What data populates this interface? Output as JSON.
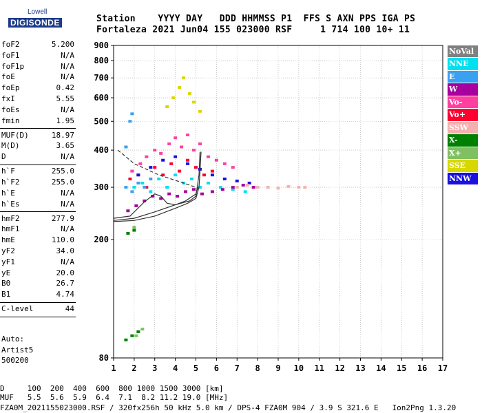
{
  "logo": {
    "brand_top": "Lowell",
    "brand_main": "DIGISONDE"
  },
  "header": {
    "line1": "Station    YYYY DAY   DDD HHMMSS P1  FFS S AXN PPS IGA PS",
    "line2": "Fortaleza 2021 Jun04 155 023000 RSF     1 714 100 10+ 11"
  },
  "params_groups": [
    [
      [
        "foF2",
        "5.200"
      ],
      [
        "foF1",
        "N/A"
      ],
      [
        "foF1p",
        "N/A"
      ],
      [
        "foE",
        "N/A"
      ],
      [
        "foEp",
        "0.42"
      ],
      [
        "fxI",
        "5.55"
      ],
      [
        "foEs",
        "N/A"
      ],
      [
        "fmin",
        "1.95"
      ]
    ],
    [
      [
        "MUF(D)",
        "18.97"
      ],
      [
        "M(D)",
        "3.65"
      ],
      [
        "D",
        "N/A"
      ]
    ],
    [
      [
        "h`F",
        "255.0"
      ],
      [
        "h`F2",
        "255.0"
      ],
      [
        "h`E",
        "N/A"
      ],
      [
        "h`Es",
        "N/A"
      ]
    ],
    [
      [
        "hmF2",
        "277.9"
      ],
      [
        "hmF1",
        "N/A"
      ],
      [
        "hmE",
        "110.0"
      ],
      [
        "yF2",
        "34.0"
      ],
      [
        "yF1",
        "N/A"
      ],
      [
        "yE",
        "20.0"
      ],
      [
        "B0",
        "26.7"
      ],
      [
        "B1",
        "4.74"
      ]
    ],
    [
      [
        "C-level",
        "44"
      ]
    ]
  ],
  "auto_lines": [
    "Auto:",
    "Artist5",
    "500200"
  ],
  "legend": [
    {
      "label": "NoVal",
      "color": "#808080"
    },
    {
      "label": "NNE",
      "color": "#00e0f0"
    },
    {
      "label": "E",
      "color": "#3aa0f0"
    },
    {
      "label": "W",
      "color": "#a8009e"
    },
    {
      "label": "Vo-",
      "color": "#ff40a0"
    },
    {
      "label": "Vo+",
      "color": "#ff0030"
    },
    {
      "label": "SSW",
      "color": "#f4b0b0"
    },
    {
      "label": "X-",
      "color": "#008000"
    },
    {
      "label": "X+",
      "color": "#80c060"
    },
    {
      "label": "SSE",
      "color": "#d8d800"
    },
    {
      "label": "NNW",
      "color": "#1a10e0"
    }
  ],
  "footer": {
    "line1": "D     100  200  400  600  800 1000 1500 3000 [km]",
    "line2": "MUF   5.5  5.6  5.9  6.4  7.1  8.2 11.2 19.0 [MHz]",
    "line3": "FZA0M_2021155023000.RSF / 320fx256h 50 kHz 5.0 km / DPS-4 FZA0M 904 / 3.9 S 321.6 E   Ion2Png 1.3.20"
  },
  "chart_data": {
    "type": "scatter",
    "title": "",
    "xlabel": "",
    "ylabel": "",
    "x_ticks": [
      1,
      2,
      3,
      4,
      5,
      6,
      7,
      8,
      9,
      10,
      11,
      12,
      13,
      14,
      15,
      16,
      17
    ],
    "y_ticks": [
      80,
      200,
      300,
      400,
      500,
      600,
      700,
      800,
      900
    ],
    "xlim": [
      1,
      17
    ],
    "ylim": [
      80,
      900
    ],
    "y_scale": "log",
    "grid": true,
    "legend_placement": "right",
    "series": [
      {
        "points": [
          [
            1.9,
            340
          ],
          [
            2.3,
            360
          ],
          [
            2.6,
            380
          ],
          [
            3.0,
            400
          ],
          [
            3.3,
            390
          ],
          [
            3.7,
            420
          ],
          [
            4.0,
            440
          ],
          [
            4.3,
            410
          ],
          [
            4.6,
            450
          ],
          [
            4.9,
            400
          ],
          [
            5.2,
            420
          ],
          [
            5.6,
            380
          ],
          [
            6.0,
            370
          ],
          [
            6.4,
            360
          ],
          [
            6.8,
            350
          ]
        ]
      },
      {
        "points": [
          [
            1.8,
            320
          ],
          [
            2.2,
            330
          ],
          [
            2.6,
            300
          ],
          [
            3.0,
            350
          ],
          [
            3.4,
            330
          ],
          [
            3.8,
            360
          ],
          [
            4.2,
            340
          ],
          [
            4.6,
            370
          ],
          [
            5.0,
            350
          ],
          [
            5.4,
            330
          ],
          [
            5.8,
            340
          ]
        ]
      },
      {
        "points": [
          [
            2.0,
            300
          ],
          [
            2.4,
            310
          ],
          [
            2.8,
            290
          ],
          [
            3.2,
            320
          ],
          [
            3.6,
            300
          ],
          [
            4.0,
            330
          ],
          [
            4.4,
            310
          ],
          [
            4.8,
            320
          ],
          [
            5.2,
            300
          ],
          [
            5.6,
            310
          ],
          [
            6.2,
            300
          ],
          [
            6.8,
            295
          ],
          [
            7.4,
            290
          ],
          [
            8.0,
            300
          ]
        ]
      },
      {
        "points": [
          [
            2.2,
            330
          ],
          [
            2.8,
            350
          ],
          [
            3.4,
            370
          ],
          [
            4.0,
            380
          ],
          [
            4.6,
            360
          ],
          [
            5.2,
            345
          ],
          [
            5.8,
            330
          ],
          [
            6.4,
            320
          ],
          [
            7.0,
            315
          ],
          [
            7.6,
            310
          ]
        ]
      },
      {
        "points": [
          [
            1.7,
            250
          ],
          [
            2.1,
            260
          ],
          [
            2.5,
            270
          ],
          [
            2.9,
            280
          ],
          [
            3.3,
            275
          ],
          [
            3.7,
            285
          ],
          [
            4.1,
            280
          ],
          [
            4.5,
            290
          ],
          [
            4.9,
            295
          ],
          [
            5.3,
            285
          ],
          [
            5.8,
            290
          ],
          [
            6.3,
            295
          ],
          [
            6.8,
            300
          ],
          [
            7.3,
            305
          ],
          [
            7.8,
            300
          ]
        ]
      },
      {
        "points": [
          [
            7.0,
            300
          ],
          [
            7.5,
            305
          ],
          [
            8.0,
            300
          ],
          [
            8.5,
            300
          ],
          [
            9.0,
            298
          ],
          [
            9.5,
            302
          ],
          [
            10.0,
            300
          ],
          [
            10.3,
            300
          ]
        ]
      },
      {
        "points": [
          [
            1.6,
            92
          ],
          [
            1.9,
            95
          ],
          [
            2.2,
            98
          ],
          [
            1.7,
            210
          ],
          [
            2.0,
            215
          ]
        ]
      },
      {
        "points": [
          [
            2.1,
            95
          ],
          [
            2.4,
            100
          ],
          [
            2.0,
            220
          ]
        ]
      },
      {
        "points": [
          [
            3.6,
            560
          ],
          [
            3.9,
            600
          ],
          [
            4.2,
            650
          ],
          [
            4.4,
            700
          ],
          [
            4.7,
            620
          ],
          [
            4.9,
            580
          ],
          [
            5.2,
            540
          ]
        ]
      },
      {
        "points": [
          [
            1.6,
            300
          ],
          [
            1.9,
            290
          ],
          [
            2.2,
            310
          ],
          [
            2.5,
            300
          ],
          [
            2.8,
            320
          ],
          [
            1.8,
            500
          ],
          [
            1.9,
            530
          ],
          [
            1.6,
            410
          ]
        ]
      }
    ],
    "traces": [
      {
        "points": [
          [
            1.0,
            230
          ],
          [
            2.0,
            232
          ],
          [
            3.0,
            240
          ],
          [
            4.0,
            255
          ],
          [
            4.6,
            265
          ],
          [
            5.0,
            275
          ],
          [
            5.15,
            300
          ],
          [
            5.2,
            340
          ],
          [
            5.25,
            395
          ]
        ]
      },
      {
        "points": [
          [
            1.0,
            232
          ],
          [
            2.0,
            236
          ],
          [
            3.0,
            248
          ],
          [
            4.0,
            262
          ],
          [
            4.7,
            270
          ],
          [
            5.0,
            280
          ],
          [
            5.15,
            330
          ],
          [
            5.2,
            395
          ]
        ]
      },
      {
        "points": [
          [
            1.0,
            236
          ],
          [
            1.8,
            240
          ],
          [
            2.5,
            268
          ],
          [
            3.0,
            285
          ],
          [
            3.3,
            280
          ],
          [
            3.6,
            265
          ],
          [
            4.0,
            262
          ],
          [
            4.5,
            270
          ],
          [
            5.0,
            285
          ],
          [
            5.1,
            300
          ]
        ]
      },
      {
        "points": [
          [
            1.2,
            400
          ],
          [
            1.6,
            380
          ],
          [
            2.0,
            360
          ],
          [
            2.6,
            345
          ],
          [
            3.2,
            330
          ],
          [
            3.8,
            320
          ],
          [
            4.4,
            310
          ],
          [
            5.0,
            300
          ]
        ]
      }
    ]
  }
}
